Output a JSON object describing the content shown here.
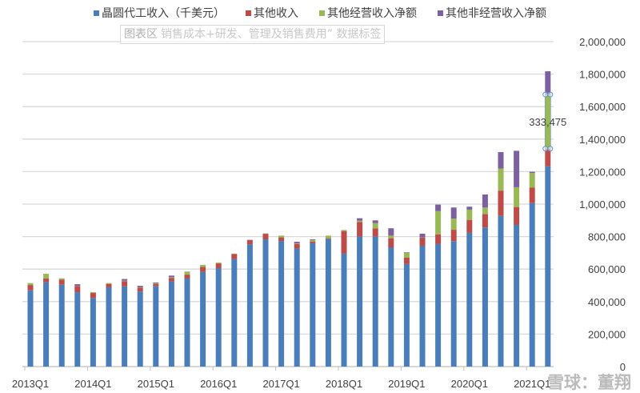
{
  "chart_data": {
    "type": "bar",
    "stacked": true,
    "title": "",
    "xlabel": "",
    "ylabel": "",
    "ylim": [
      0,
      2000000
    ],
    "y_ticks": [
      "0",
      "200,000",
      "400,000",
      "600,000",
      "800,000",
      "1,000,000",
      "1,200,000",
      "1,400,000",
      "1,600,000",
      "1,800,000",
      "2,000,000"
    ],
    "y_axis_position": "right",
    "grid": true,
    "legend_position": "top",
    "categories": [
      "2013Q1",
      "2013Q2",
      "2013Q3",
      "2013Q4",
      "2014Q1",
      "2014Q2",
      "2014Q3",
      "2014Q4",
      "2015Q1",
      "2015Q2",
      "2015Q3",
      "2015Q4",
      "2016Q1",
      "2016Q2",
      "2016Q3",
      "2016Q4",
      "2017Q1",
      "2017Q2",
      "2017Q3",
      "2017Q4",
      "2018Q1",
      "2018Q2",
      "2018Q3",
      "2018Q4",
      "2019Q1",
      "2019Q2",
      "2019Q3",
      "2019Q4",
      "2020Q1",
      "2020Q2",
      "2020Q3",
      "2020Q4",
      "2021Q1",
      "2021Q2"
    ],
    "x_tick_labels": [
      "2013Q1",
      "2014Q1",
      "2015Q1",
      "2016Q1",
      "2017Q1",
      "2018Q1",
      "2019Q1",
      "2020Q1",
      "2021Q1"
    ],
    "series": [
      {
        "name": "晶圆代工收入（千美元）",
        "color": "#4a7ebb",
        "values": [
          469000,
          519000,
          504000,
          458000,
          422000,
          488000,
          494000,
          462000,
          494000,
          524000,
          542000,
          583000,
          606000,
          662000,
          752000,
          783000,
          773000,
          727000,
          759000,
          785000,
          695000,
          801000,
          801000,
          734000,
          631000,
          744000,
          754000,
          772000,
          823000,
          856000,
          928000,
          872000,
          1006000,
          1233000
        ]
      },
      {
        "name": "其他收入",
        "color": "#be4b48",
        "values": [
          33000,
          24000,
          31000,
          38000,
          31000,
          21000,
          32000,
          23000,
          15000,
          22000,
          24000,
          30000,
          29000,
          30000,
          26000,
          34000,
          22000,
          28000,
          11000,
          5000,
          139000,
          89000,
          50000,
          56000,
          39000,
          49000,
          60000,
          70000,
          80000,
          83000,
          155000,
          110000,
          95000,
          108000
        ]
      },
      {
        "name": "其他经营收入净额",
        "color": "#98b954",
        "values": [
          12000,
          28000,
          8000,
          1000,
          5000,
          5000,
          3000,
          3000,
          3000,
          4000,
          19000,
          13000,
          5000,
          3000,
          0,
          0,
          11000,
          3000,
          8000,
          16000,
          7000,
          8000,
          32000,
          16000,
          31000,
          2000,
          143000,
          69000,
          63000,
          40000,
          136000,
          122000,
          90000,
          333475
        ]
      },
      {
        "name": "其他非经营收入净额",
        "color": "#7d60a0",
        "values": [
          0,
          0,
          0,
          10000,
          0,
          0,
          10000,
          9000,
          5000,
          10000,
          0,
          0,
          0,
          0,
          2000,
          2000,
          0,
          10000,
          5000,
          0,
          0,
          15000,
          17000,
          45000,
          3000,
          23000,
          40000,
          68000,
          18000,
          80000,
          101000,
          224000,
          8000,
          143000
        ]
      }
    ],
    "annotations": [
      {
        "text": "333,475",
        "category": "2021Q2",
        "series": "其他经营收入净额"
      }
    ]
  },
  "tooltip": {
    "label": "图表区",
    "text": "销售成本+研发、管理及销售费用” 数据标签"
  },
  "watermark": "雪球：董翔"
}
